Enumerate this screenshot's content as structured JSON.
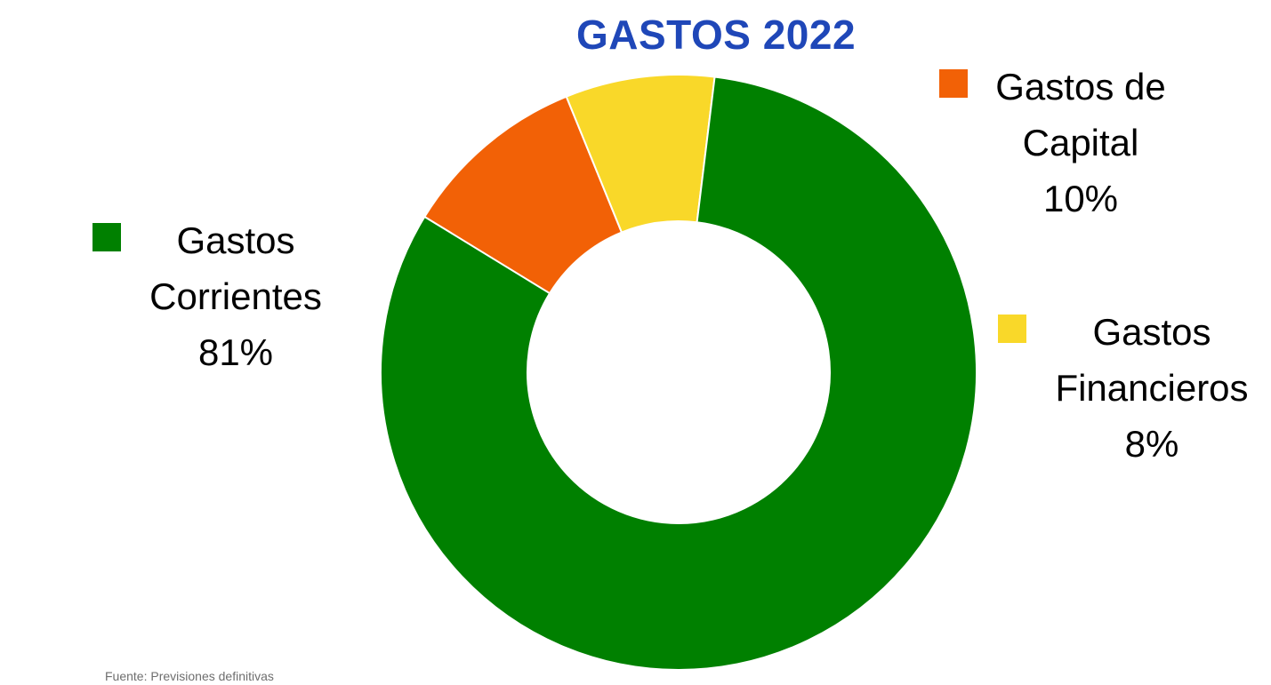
{
  "chart_data": {
    "type": "pie",
    "title": "GASTOS 2022",
    "slices": [
      {
        "label_lines": [
          "Gastos",
          "Corrientes"
        ],
        "percent_label": "81%",
        "value": 81,
        "color": "#008000"
      },
      {
        "label_lines": [
          "Gastos de",
          "Capital"
        ],
        "percent_label": "10%",
        "value": 10,
        "color": "#f26106"
      },
      {
        "label_lines": [
          "Gastos",
          "Financieros"
        ],
        "percent_label": "8%",
        "value": 8,
        "color": "#f9d829"
      }
    ],
    "legend_position": "around chart"
  },
  "source_note": "Fuente: Previsiones definitivas",
  "colors": {
    "title": "#1f47b8",
    "background": "#ffffff"
  }
}
